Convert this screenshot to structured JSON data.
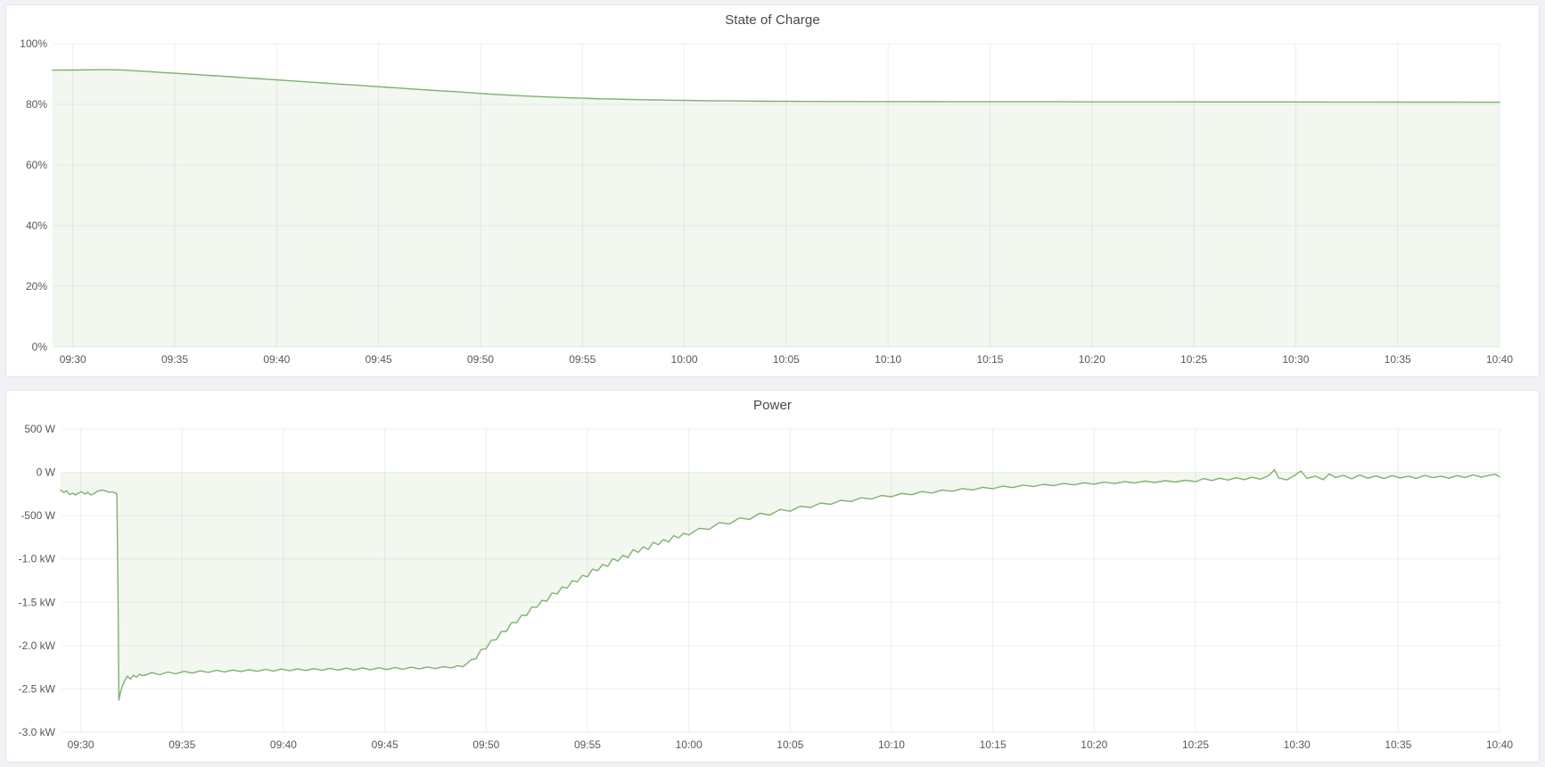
{
  "theme": {
    "page_bg": "#f0f2f6",
    "panel_bg": "#ffffff",
    "panel_border": "#e2e5ea",
    "title_color": "#44484f",
    "tick_color": "#55585f",
    "grid_color": "rgba(40,46,52,0.08)",
    "accent_green": "#7eb26d"
  },
  "panels": [
    {
      "title": "State of Charge"
    },
    {
      "title": "Power"
    }
  ],
  "chart_data": [
    {
      "type": "area",
      "title": "State of Charge",
      "unit": "percent",
      "line_color": "#7eb26d",
      "fill_color": "rgba(126,178,109,0.10)",
      "baseline": 0,
      "ylim": [
        0,
        100
      ],
      "x_range_minutes": [
        569.05,
        640
      ],
      "x_ticks": [
        {
          "m": 570,
          "label": "09:30"
        },
        {
          "m": 575,
          "label": "09:35"
        },
        {
          "m": 580,
          "label": "09:40"
        },
        {
          "m": 585,
          "label": "09:45"
        },
        {
          "m": 590,
          "label": "09:50"
        },
        {
          "m": 595,
          "label": "09:55"
        },
        {
          "m": 600,
          "label": "10:00"
        },
        {
          "m": 605,
          "label": "10:05"
        },
        {
          "m": 610,
          "label": "10:10"
        },
        {
          "m": 615,
          "label": "10:15"
        },
        {
          "m": 620,
          "label": "10:20"
        },
        {
          "m": 625,
          "label": "10:25"
        },
        {
          "m": 630,
          "label": "10:30"
        },
        {
          "m": 635,
          "label": "10:35"
        },
        {
          "m": 640,
          "label": "10:40"
        }
      ],
      "y_ticks": [
        {
          "v": 100,
          "label": "100%"
        },
        {
          "v": 80,
          "label": "80%"
        },
        {
          "v": 60,
          "label": "60%"
        },
        {
          "v": 40,
          "label": "40%"
        },
        {
          "v": 20,
          "label": "20%"
        },
        {
          "v": 0,
          "label": "0%"
        }
      ],
      "points_format": [
        "minutes_since_midnight",
        "percent"
      ],
      "points": [
        [
          569,
          91.3
        ],
        [
          570,
          91.32
        ],
        [
          570.7,
          91.38
        ],
        [
          571.4,
          91.42
        ],
        [
          572,
          91.4
        ],
        [
          572.5,
          91.28
        ],
        [
          573,
          91.1
        ],
        [
          573.5,
          90.9
        ],
        [
          574,
          90.68
        ],
        [
          574.5,
          90.48
        ],
        [
          575,
          90.25
        ],
        [
          575.5,
          90.05
        ],
        [
          576,
          89.85
        ],
        [
          576.5,
          89.62
        ],
        [
          577,
          89.4
        ],
        [
          577.5,
          89.2
        ],
        [
          578,
          88.98
        ],
        [
          578.5,
          88.75
        ],
        [
          579,
          88.52
        ],
        [
          579.5,
          88.3
        ],
        [
          580,
          88.08
        ],
        [
          580.5,
          87.85
        ],
        [
          581,
          87.62
        ],
        [
          581.5,
          87.4
        ],
        [
          582,
          87.17
        ],
        [
          582.5,
          86.95
        ],
        [
          583,
          86.72
        ],
        [
          583.5,
          86.5
        ],
        [
          584,
          86.28
        ],
        [
          584.5,
          86.05
        ],
        [
          585,
          85.82
        ],
        [
          585.5,
          85.6
        ],
        [
          586,
          85.38
        ],
        [
          586.5,
          85.15
        ],
        [
          587,
          84.92
        ],
        [
          587.5,
          84.7
        ],
        [
          588,
          84.48
        ],
        [
          588.5,
          84.28
        ],
        [
          589,
          84.08
        ],
        [
          589.5,
          83.85
        ],
        [
          590,
          83.6
        ],
        [
          590.5,
          83.38
        ],
        [
          591,
          83.18
        ],
        [
          591.5,
          83.0
        ],
        [
          592,
          82.83
        ],
        [
          592.5,
          82.67
        ],
        [
          593,
          82.52
        ],
        [
          593.5,
          82.38
        ],
        [
          594,
          82.25
        ],
        [
          594.5,
          82.13
        ],
        [
          595,
          82.02
        ],
        [
          595.5,
          81.92
        ],
        [
          596,
          81.83
        ],
        [
          596.5,
          81.75
        ],
        [
          597,
          81.67
        ],
        [
          597.5,
          81.6
        ],
        [
          598,
          81.53
        ],
        [
          598.5,
          81.47
        ],
        [
          599,
          81.41
        ],
        [
          599.5,
          81.36
        ],
        [
          600,
          81.31
        ],
        [
          601,
          81.22
        ],
        [
          602,
          81.15
        ],
        [
          603,
          81.09
        ],
        [
          604,
          81.04
        ],
        [
          605,
          81.0
        ],
        [
          606,
          80.97
        ],
        [
          607,
          80.95
        ],
        [
          608,
          80.93
        ],
        [
          609,
          80.91
        ],
        [
          610,
          80.9
        ],
        [
          612,
          80.88
        ],
        [
          614,
          80.86
        ],
        [
          616,
          80.85
        ],
        [
          618,
          80.84
        ],
        [
          620,
          80.83
        ],
        [
          622,
          80.82
        ],
        [
          624,
          80.81
        ],
        [
          626,
          80.8
        ],
        [
          628,
          80.79
        ],
        [
          630,
          80.78
        ],
        [
          632,
          80.77
        ],
        [
          634,
          80.76
        ],
        [
          636,
          80.75
        ],
        [
          638,
          80.73
        ],
        [
          640,
          80.72
        ]
      ]
    },
    {
      "type": "area",
      "title": "Power",
      "unit": "watt",
      "line_color": "#7eb26d",
      "fill_color": "rgba(126,178,109,0.10)",
      "baseline": 0,
      "ylim": [
        -3000,
        500
      ],
      "x_range_minutes": [
        569.05,
        640
      ],
      "x_ticks": [
        {
          "m": 570,
          "label": "09:30"
        },
        {
          "m": 575,
          "label": "09:35"
        },
        {
          "m": 580,
          "label": "09:40"
        },
        {
          "m": 585,
          "label": "09:45"
        },
        {
          "m": 590,
          "label": "09:50"
        },
        {
          "m": 595,
          "label": "09:55"
        },
        {
          "m": 600,
          "label": "10:00"
        },
        {
          "m": 605,
          "label": "10:05"
        },
        {
          "m": 610,
          "label": "10:10"
        },
        {
          "m": 615,
          "label": "10:15"
        },
        {
          "m": 620,
          "label": "10:20"
        },
        {
          "m": 625,
          "label": "10:25"
        },
        {
          "m": 630,
          "label": "10:30"
        },
        {
          "m": 635,
          "label": "10:35"
        },
        {
          "m": 640,
          "label": "10:40"
        }
      ],
      "y_ticks": [
        {
          "v": 500,
          "label": "500 W"
        },
        {
          "v": 0,
          "label": "0 W"
        },
        {
          "v": -500,
          "label": "-500 W"
        },
        {
          "v": -1000,
          "label": "-1.0 kW"
        },
        {
          "v": -1500,
          "label": "-1.5 kW"
        },
        {
          "v": -2000,
          "label": "-2.0 kW"
        },
        {
          "v": -2500,
          "label": "-2.5 kW"
        },
        {
          "v": -3000,
          "label": "-3.0 kW"
        }
      ],
      "points_format": [
        "minutes_since_midnight",
        "watts"
      ],
      "points": [
        [
          569.0,
          -205
        ],
        [
          569.15,
          -232
        ],
        [
          569.3,
          -214
        ],
        [
          569.45,
          -258
        ],
        [
          569.6,
          -241
        ],
        [
          569.75,
          -262
        ],
        [
          569.9,
          -237
        ],
        [
          570.05,
          -225
        ],
        [
          570.2,
          -251
        ],
        [
          570.35,
          -232
        ],
        [
          570.5,
          -262
        ],
        [
          570.65,
          -246
        ],
        [
          570.8,
          -222
        ],
        [
          570.95,
          -210
        ],
        [
          571.1,
          -205
        ],
        [
          571.25,
          -218
        ],
        [
          571.4,
          -230
        ],
        [
          571.55,
          -226
        ],
        [
          571.7,
          -238
        ],
        [
          571.78,
          -248
        ],
        [
          571.84,
          -1400
        ],
        [
          571.88,
          -2630
        ],
        [
          571.96,
          -2540
        ],
        [
          572.06,
          -2462
        ],
        [
          572.16,
          -2408
        ],
        [
          572.3,
          -2352
        ],
        [
          572.45,
          -2388
        ],
        [
          572.6,
          -2342
        ],
        [
          572.75,
          -2365
        ],
        [
          572.9,
          -2332
        ],
        [
          573.1,
          -2348
        ],
        [
          573.5,
          -2312
        ],
        [
          573.9,
          -2336
        ],
        [
          574.3,
          -2305
        ],
        [
          574.7,
          -2326
        ],
        [
          575.1,
          -2298
        ],
        [
          575.5,
          -2318
        ],
        [
          575.9,
          -2292
        ],
        [
          576.3,
          -2310
        ],
        [
          576.7,
          -2286
        ],
        [
          577.1,
          -2305
        ],
        [
          577.5,
          -2282
        ],
        [
          577.9,
          -2300
        ],
        [
          578.3,
          -2278
        ],
        [
          578.7,
          -2297
        ],
        [
          579.1,
          -2274
        ],
        [
          579.5,
          -2294
        ],
        [
          579.9,
          -2271
        ],
        [
          580.3,
          -2291
        ],
        [
          580.7,
          -2268
        ],
        [
          581.1,
          -2288
        ],
        [
          581.5,
          -2266
        ],
        [
          581.9,
          -2286
        ],
        [
          582.3,
          -2263
        ],
        [
          582.7,
          -2284
        ],
        [
          583.1,
          -2261
        ],
        [
          583.5,
          -2282
        ],
        [
          583.9,
          -2258
        ],
        [
          584.3,
          -2280
        ],
        [
          584.7,
          -2256
        ],
        [
          585.1,
          -2277
        ],
        [
          585.5,
          -2253
        ],
        [
          585.9,
          -2274
        ],
        [
          586.3,
          -2250
        ],
        [
          586.7,
          -2270
        ],
        [
          587.1,
          -2247
        ],
        [
          587.5,
          -2266
        ],
        [
          587.9,
          -2243
        ],
        [
          588.3,
          -2258
        ],
        [
          588.6,
          -2232
        ],
        [
          588.85,
          -2245
        ],
        [
          589.05,
          -2208
        ],
        [
          589.25,
          -2165
        ],
        [
          589.5,
          -2152
        ],
        [
          589.75,
          -2046
        ],
        [
          590.0,
          -2036
        ],
        [
          590.25,
          -1939
        ],
        [
          590.5,
          -1933
        ],
        [
          590.75,
          -1839
        ],
        [
          591.0,
          -1837
        ],
        [
          591.25,
          -1737
        ],
        [
          591.5,
          -1735
        ],
        [
          591.75,
          -1650
        ],
        [
          592.0,
          -1651
        ],
        [
          592.25,
          -1556
        ],
        [
          592.5,
          -1560
        ],
        [
          592.75,
          -1479
        ],
        [
          593.0,
          -1486
        ],
        [
          593.25,
          -1392
        ],
        [
          593.5,
          -1404
        ],
        [
          593.75,
          -1324
        ],
        [
          594.0,
          -1337
        ],
        [
          594.25,
          -1252
        ],
        [
          594.5,
          -1264
        ],
        [
          594.75,
          -1190
        ],
        [
          595.0,
          -1206
        ],
        [
          595.25,
          -1118
        ],
        [
          595.5,
          -1137
        ],
        [
          595.75,
          -1065
        ],
        [
          596.0,
          -1085
        ],
        [
          596.25,
          -997
        ],
        [
          596.5,
          -1025
        ],
        [
          596.75,
          -959
        ],
        [
          597.0,
          -984
        ],
        [
          597.25,
          -894
        ],
        [
          597.5,
          -925
        ],
        [
          597.75,
          -862
        ],
        [
          598.0,
          -890
        ],
        [
          598.25,
          -808
        ],
        [
          598.5,
          -836
        ],
        [
          598.75,
          -776
        ],
        [
          599.0,
          -806
        ],
        [
          599.25,
          -731
        ],
        [
          599.5,
          -757
        ],
        [
          599.75,
          -702
        ],
        [
          600.0,
          -724
        ],
        [
          600.5,
          -647
        ],
        [
          601.0,
          -659
        ],
        [
          601.5,
          -580
        ],
        [
          602.0,
          -597
        ],
        [
          602.5,
          -526
        ],
        [
          603.0,
          -544
        ],
        [
          603.5,
          -473
        ],
        [
          604.0,
          -493
        ],
        [
          604.5,
          -429
        ],
        [
          605.0,
          -449
        ],
        [
          605.5,
          -393
        ],
        [
          606.0,
          -406
        ],
        [
          606.5,
          -355
        ],
        [
          607.0,
          -370
        ],
        [
          607.5,
          -324
        ],
        [
          608.0,
          -337
        ],
        [
          608.5,
          -294
        ],
        [
          609.0,
          -309
        ],
        [
          609.5,
          -268
        ],
        [
          610.0,
          -282
        ],
        [
          610.5,
          -244
        ],
        [
          611.0,
          -259
        ],
        [
          611.5,
          -223
        ],
        [
          612.0,
          -239
        ],
        [
          612.5,
          -204
        ],
        [
          613.0,
          -220
        ],
        [
          613.5,
          -188
        ],
        [
          614.0,
          -204
        ],
        [
          614.5,
          -173
        ],
        [
          615.0,
          -190
        ],
        [
          615.5,
          -160
        ],
        [
          616.0,
          -176
        ],
        [
          616.5,
          -148
        ],
        [
          617.0,
          -165
        ],
        [
          617.5,
          -138
        ],
        [
          618.0,
          -155
        ],
        [
          618.5,
          -129
        ],
        [
          619.0,
          -145
        ],
        [
          619.5,
          -121
        ],
        [
          620.0,
          -137
        ],
        [
          620.5,
          -114
        ],
        [
          621.0,
          -130
        ],
        [
          621.5,
          -108
        ],
        [
          622.0,
          -124
        ],
        [
          622.5,
          -102
        ],
        [
          623.0,
          -118
        ],
        [
          623.5,
          -97
        ],
        [
          624.0,
          -113
        ],
        [
          624.5,
          -92
        ],
        [
          625.0,
          -108
        ],
        [
          625.4,
          -72
        ],
        [
          625.8,
          -95
        ],
        [
          626.2,
          -68
        ],
        [
          626.6,
          -90
        ],
        [
          627.0,
          -62
        ],
        [
          627.4,
          -85
        ],
        [
          627.8,
          -58
        ],
        [
          628.2,
          -80
        ],
        [
          628.6,
          -40
        ],
        [
          628.9,
          30
        ],
        [
          629.1,
          -65
        ],
        [
          629.5,
          -88
        ],
        [
          629.9,
          -35
        ],
        [
          630.2,
          15
        ],
        [
          630.5,
          -70
        ],
        [
          630.9,
          -45
        ],
        [
          631.3,
          -85
        ],
        [
          631.6,
          -20
        ],
        [
          631.9,
          -60
        ],
        [
          632.3,
          -35
        ],
        [
          632.7,
          -75
        ],
        [
          633.1,
          -30
        ],
        [
          633.5,
          -68
        ],
        [
          633.9,
          -42
        ],
        [
          634.3,
          -72
        ],
        [
          634.7,
          -38
        ],
        [
          635.1,
          -65
        ],
        [
          635.5,
          -45
        ],
        [
          635.9,
          -70
        ],
        [
          636.3,
          -35
        ],
        [
          636.7,
          -62
        ],
        [
          637.1,
          -45
        ],
        [
          637.5,
          -68
        ],
        [
          637.9,
          -38
        ],
        [
          638.3,
          -60
        ],
        [
          638.7,
          -30
        ],
        [
          639.1,
          -55
        ],
        [
          639.5,
          -35
        ],
        [
          639.8,
          -22
        ],
        [
          640.0,
          -55
        ]
      ]
    }
  ]
}
